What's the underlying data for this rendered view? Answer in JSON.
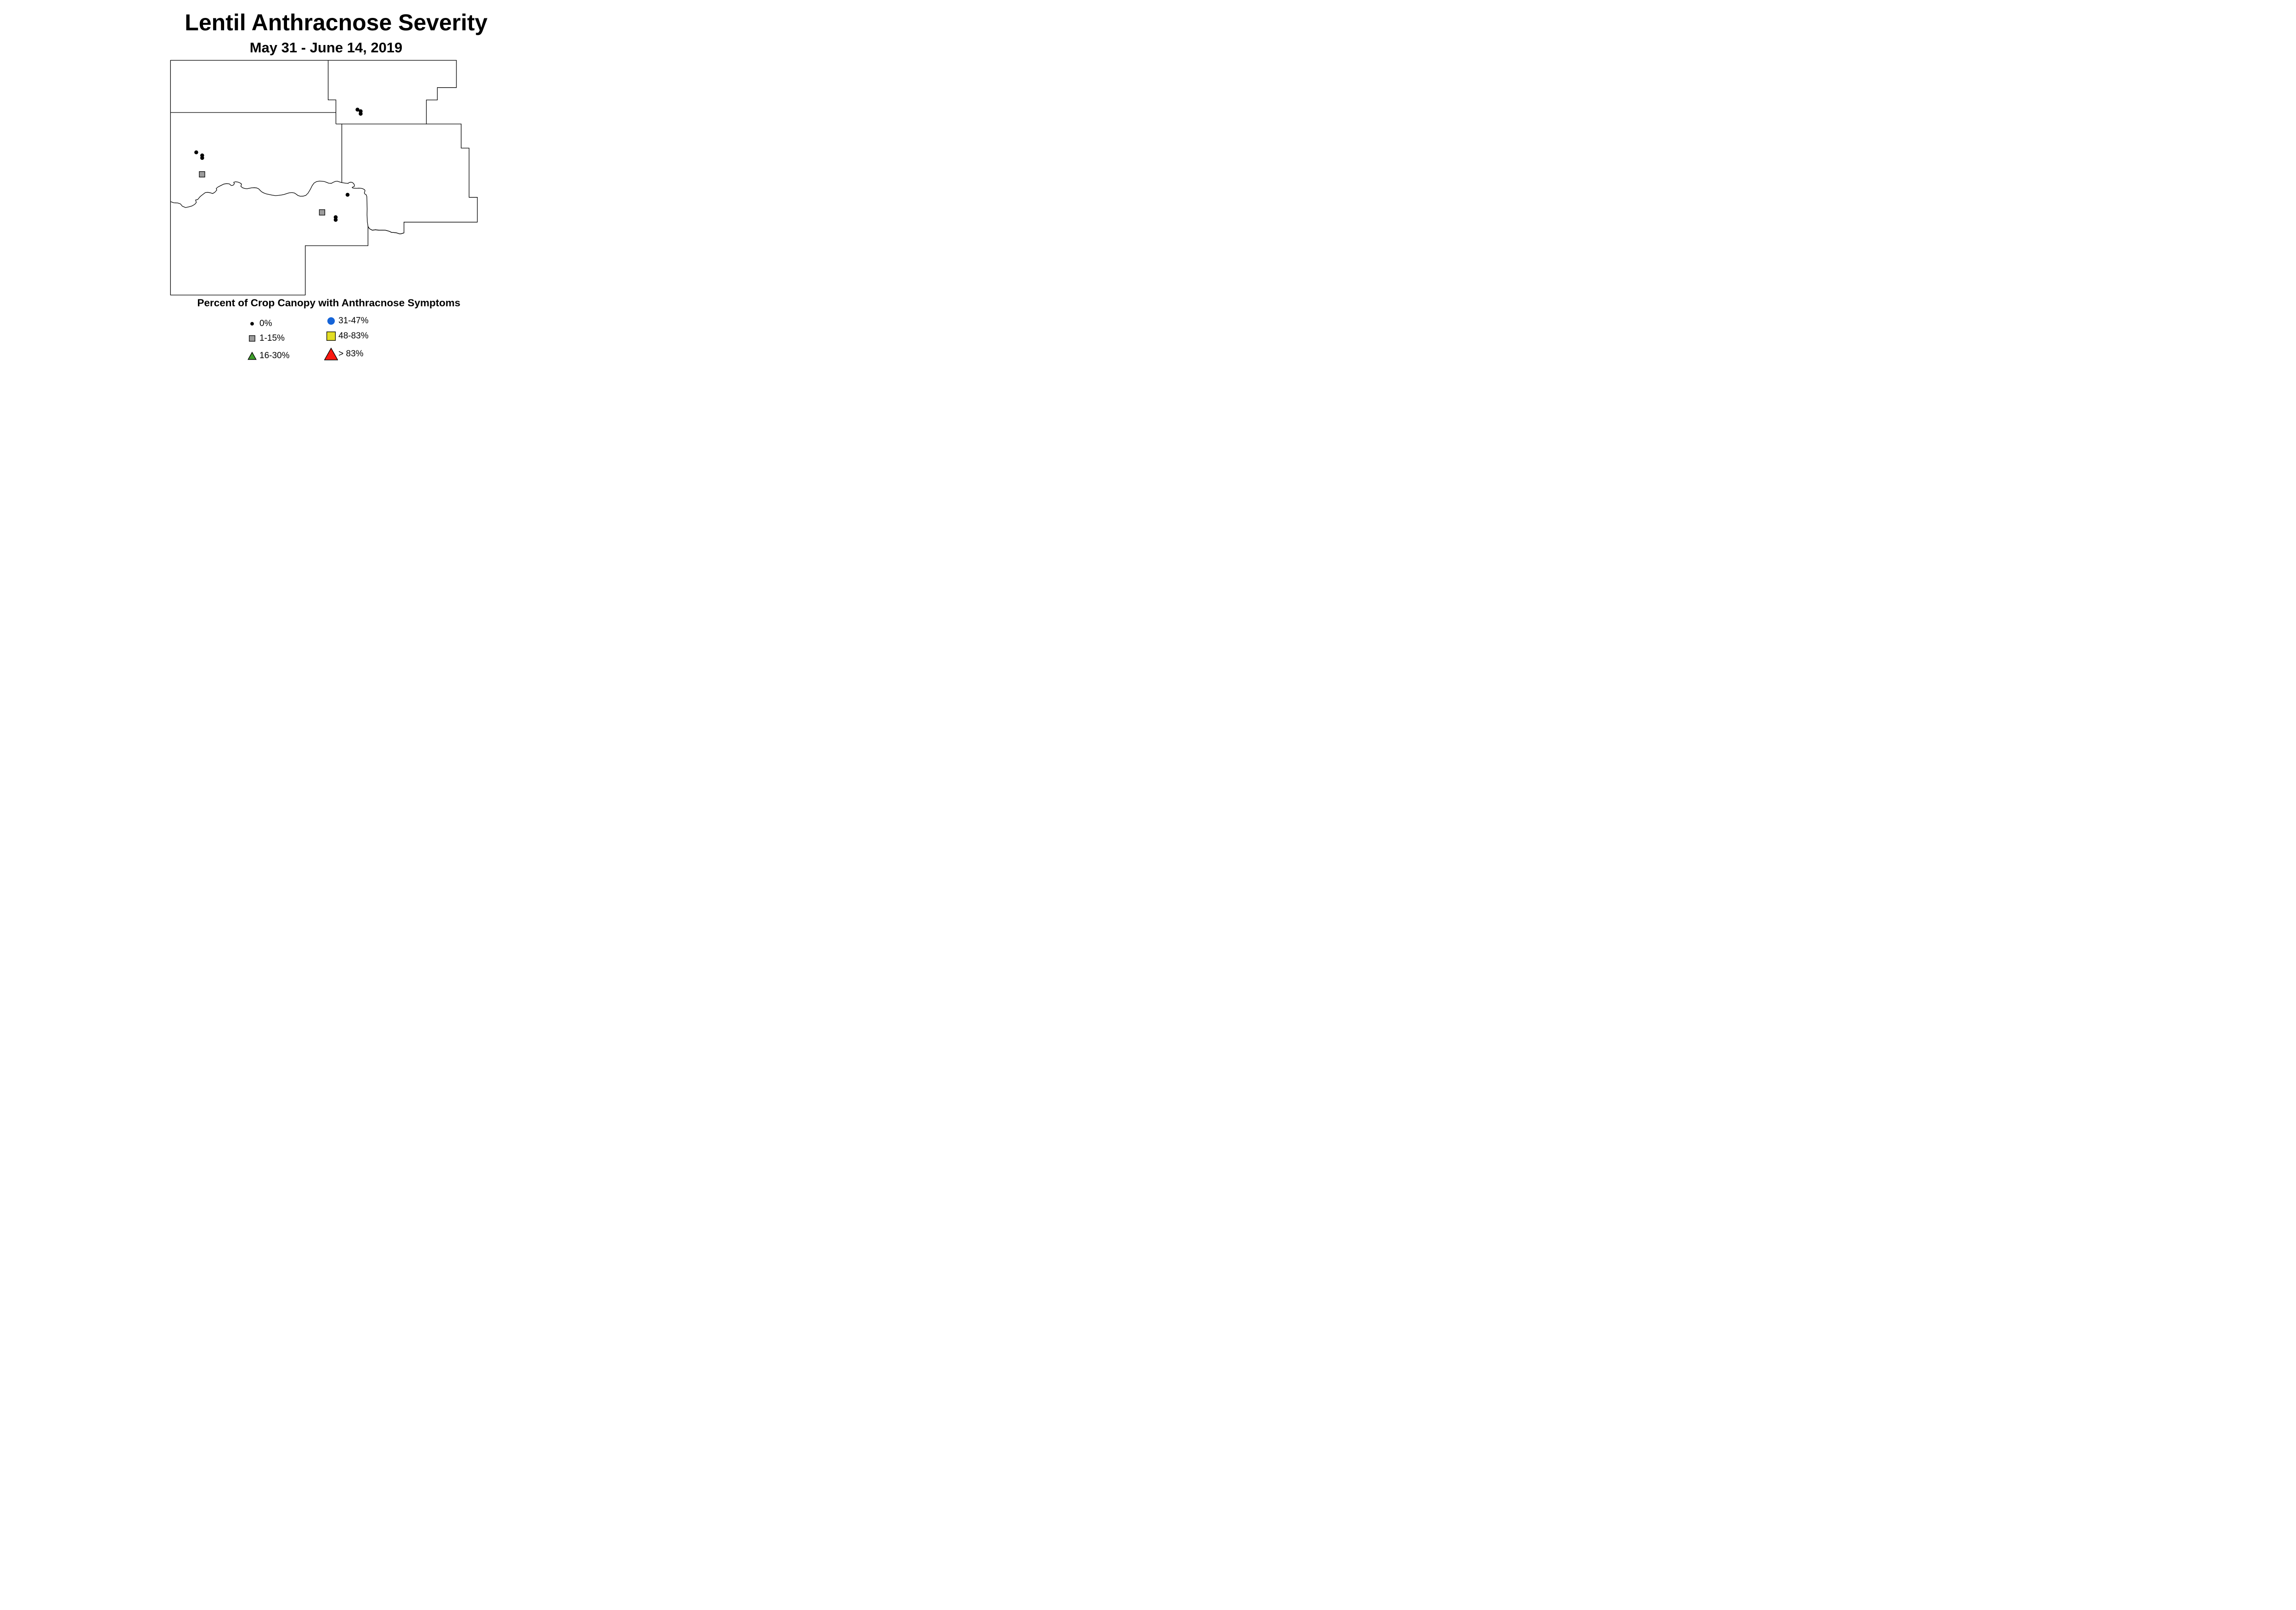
{
  "title": "Lentil Anthracnose Severity",
  "subtitle": "May 31 - June 14, 2019",
  "legend": {
    "title": "Percent of Crop Canopy with Anthracnose Symptoms",
    "columns": [
      {
        "items": [
          {
            "label": "0%",
            "symbol": "dot",
            "color": "#000000"
          },
          {
            "label": "1-15%",
            "symbol": "square",
            "color": "#9C9C9C"
          },
          {
            "label": "16-30%",
            "symbol": "triangle",
            "color": "#3E9E2B"
          }
        ]
      },
      {
        "items": [
          {
            "label": "31-47%",
            "symbol": "circle",
            "color": "#1564D8"
          },
          {
            "label": "48-83%",
            "symbol": "square",
            "color": "#E3DE25"
          },
          {
            "label": "> 83%",
            "symbol": "triangle",
            "color": "#FB1810"
          }
        ]
      }
    ]
  },
  "map": {
    "outline_color": "#000000",
    "background_color": "#ffffff",
    "points": [
      {
        "x": 778.5,
        "y": 238.8,
        "category": "0%"
      },
      {
        "x": 785.4,
        "y": 242.3,
        "category": "0%"
      },
      {
        "x": 785.4,
        "y": 247.8,
        "category": "0%"
      },
      {
        "x": 427.4,
        "y": 331.7,
        "category": "0%"
      },
      {
        "x": 440.3,
        "y": 338.5,
        "category": "0%"
      },
      {
        "x": 440.3,
        "y": 344.0,
        "category": "0%"
      },
      {
        "x": 440.0,
        "y": 379.6,
        "category": "1-15%"
      },
      {
        "x": 756.9,
        "y": 424.1,
        "category": "0%"
      },
      {
        "x": 701.4,
        "y": 462.5,
        "category": "1-15%"
      },
      {
        "x": 731.0,
        "y": 473.0,
        "category": "0%"
      },
      {
        "x": 731.0,
        "y": 478.7,
        "category": "0%"
      }
    ]
  }
}
